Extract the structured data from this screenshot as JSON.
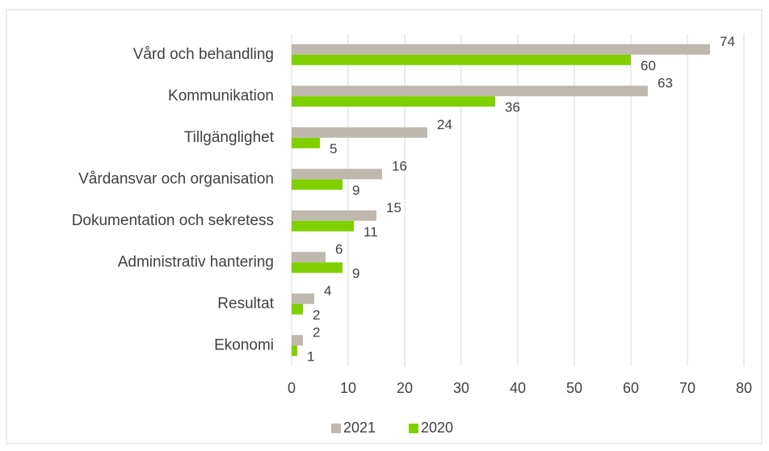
{
  "chart_data": {
    "type": "bar",
    "orientation": "horizontal",
    "categories": [
      "Vård och behandling",
      "Kommunikation",
      "Tillgänglighet",
      "Vårdansvar och organisation",
      "Dokumentation och sekretess",
      "Administrativ hantering",
      "Resultat",
      "Ekonomi"
    ],
    "series": [
      {
        "name": "2021",
        "color": "#bfb8af",
        "values": [
          74,
          63,
          24,
          16,
          15,
          6,
          4,
          2
        ]
      },
      {
        "name": "2020",
        "color": "#80d000",
        "values": [
          60,
          36,
          5,
          9,
          11,
          9,
          2,
          1
        ]
      }
    ],
    "xlim": [
      0,
      80
    ],
    "xticks": [
      0,
      10,
      20,
      30,
      40,
      50,
      60,
      70,
      80
    ],
    "grid": true,
    "legend": "bottom"
  }
}
